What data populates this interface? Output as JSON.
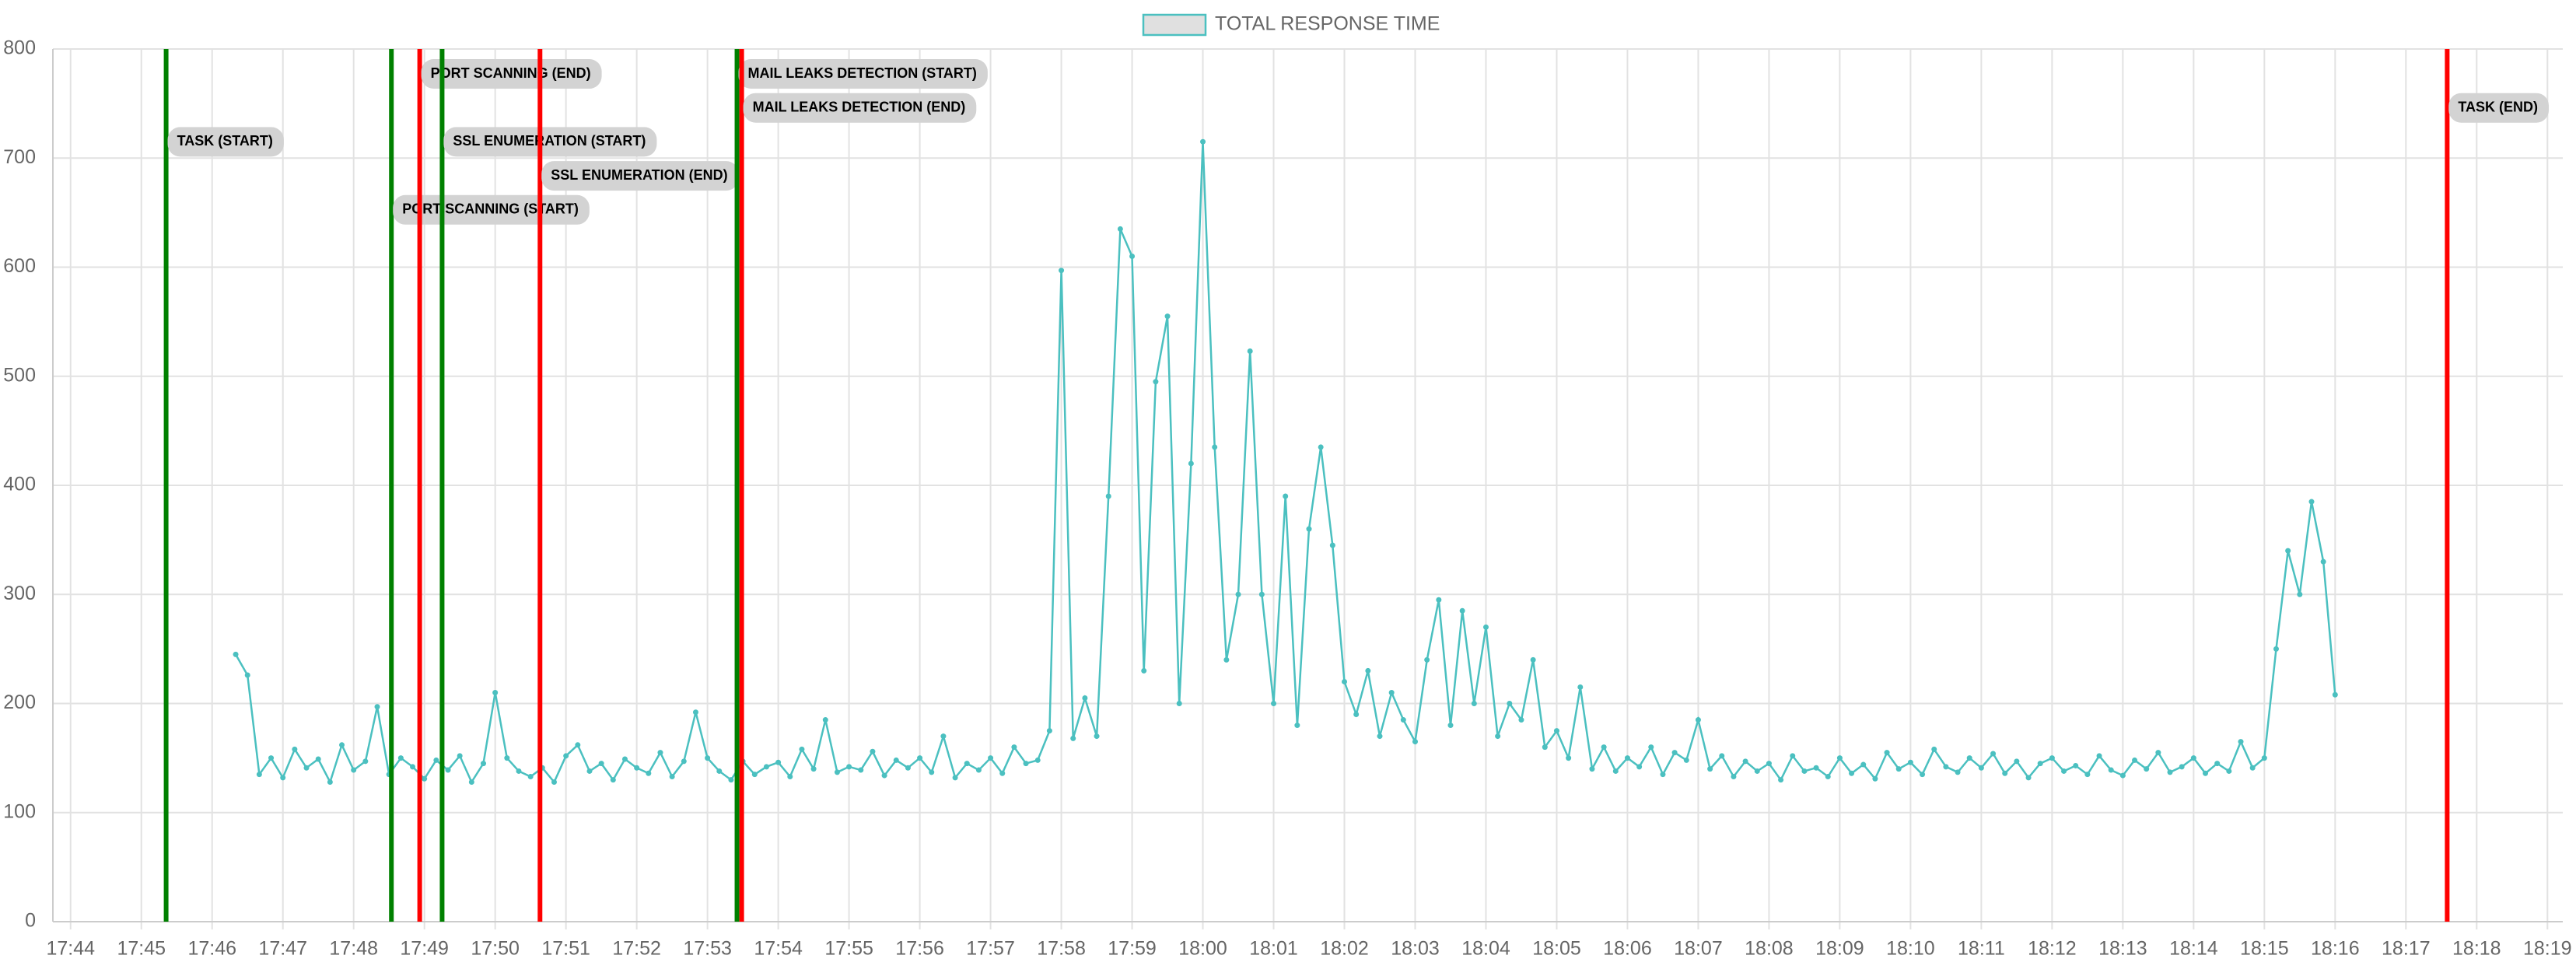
{
  "chart_data": {
    "type": "line",
    "series": [
      {
        "name": "TOTAL RESPONSE TIME",
        "color": "#4bc0c0",
        "legend_fill": "#e0e0e0",
        "x": [
          "17:46:20",
          "17:46:30",
          "17:46:40",
          "17:46:50",
          "17:47:00",
          "17:47:10",
          "17:47:20",
          "17:47:30",
          "17:47:40",
          "17:47:50",
          "17:48:00",
          "17:48:10",
          "17:48:20",
          "17:48:30",
          "17:48:40",
          "17:48:50",
          "17:49:00",
          "17:49:10",
          "17:49:20",
          "17:49:30",
          "17:49:40",
          "17:49:50",
          "17:50:00",
          "17:50:10",
          "17:50:20",
          "17:50:30",
          "17:50:40",
          "17:50:50",
          "17:51:00",
          "17:51:10",
          "17:51:20",
          "17:51:30",
          "17:51:40",
          "17:51:50",
          "17:52:00",
          "17:52:10",
          "17:52:20",
          "17:52:30",
          "17:52:40",
          "17:52:50",
          "17:53:00",
          "17:53:10",
          "17:53:20",
          "17:53:30",
          "17:53:40",
          "17:53:50",
          "17:54:00",
          "17:54:10",
          "17:54:20",
          "17:54:30",
          "17:54:40",
          "17:54:50",
          "17:55:00",
          "17:55:10",
          "17:55:20",
          "17:55:30",
          "17:55:40",
          "17:55:50",
          "17:56:00",
          "17:56:10",
          "17:56:20",
          "17:56:30",
          "17:56:40",
          "17:56:50",
          "17:57:00",
          "17:57:10",
          "17:57:20",
          "17:57:30",
          "17:57:40",
          "17:57:50",
          "17:58:00",
          "17:58:10",
          "17:58:20",
          "17:58:30",
          "17:58:40",
          "17:58:50",
          "17:59:00",
          "17:59:10",
          "17:59:20",
          "17:59:30",
          "17:59:40",
          "17:59:50",
          "18:00:00",
          "18:00:10",
          "18:00:20",
          "18:00:30",
          "18:00:40",
          "18:00:50",
          "18:01:00",
          "18:01:10",
          "18:01:20",
          "18:01:30",
          "18:01:40",
          "18:01:50",
          "18:02:00",
          "18:02:10",
          "18:02:20",
          "18:02:30",
          "18:02:40",
          "18:02:50",
          "18:03:00",
          "18:03:10",
          "18:03:20",
          "18:03:30",
          "18:03:40",
          "18:03:50",
          "18:04:00",
          "18:04:10",
          "18:04:20",
          "18:04:30",
          "18:04:40",
          "18:04:50",
          "18:05:00",
          "18:05:10",
          "18:05:20",
          "18:05:30",
          "18:05:40",
          "18:05:50",
          "18:06:00",
          "18:06:10",
          "18:06:20",
          "18:06:30",
          "18:06:40",
          "18:06:50",
          "18:07:00",
          "18:07:10",
          "18:07:20",
          "18:07:30",
          "18:07:40",
          "18:07:50",
          "18:08:00",
          "18:08:10",
          "18:08:20",
          "18:08:30",
          "18:08:40",
          "18:08:50",
          "18:09:00",
          "18:09:10",
          "18:09:20",
          "18:09:30",
          "18:09:40",
          "18:09:50",
          "18:10:00",
          "18:10:10",
          "18:10:20",
          "18:10:30",
          "18:10:40",
          "18:10:50",
          "18:11:00",
          "18:11:10",
          "18:11:20",
          "18:11:30",
          "18:11:40",
          "18:11:50",
          "18:12:00",
          "18:12:10",
          "18:12:20",
          "18:12:30",
          "18:12:40",
          "18:12:50",
          "18:13:00",
          "18:13:10",
          "18:13:20",
          "18:13:30",
          "18:13:40",
          "18:13:50",
          "18:14:00",
          "18:14:10",
          "18:14:20",
          "18:14:30",
          "18:14:40",
          "18:14:50",
          "18:15:00",
          "18:15:10",
          "18:15:20",
          "18:15:30",
          "18:15:40",
          "18:15:50",
          "18:16:00"
        ],
        "values": [
          245,
          226,
          135,
          150,
          132,
          158,
          141,
          149,
          128,
          162,
          139,
          147,
          197,
          135,
          150,
          142,
          131,
          148,
          139,
          152,
          128,
          145,
          210,
          150,
          138,
          133,
          141,
          128,
          152,
          162,
          138,
          145,
          130,
          149,
          141,
          136,
          155,
          133,
          147,
          192,
          150,
          138,
          130,
          147,
          135,
          142,
          146,
          133,
          158,
          140,
          185,
          137,
          142,
          139,
          156,
          134,
          148,
          141,
          150,
          137,
          170,
          132,
          145,
          139,
          150,
          136,
          160,
          145,
          148,
          175,
          597,
          168,
          205,
          170,
          390,
          635,
          610,
          230,
          495,
          555,
          200,
          420,
          715,
          435,
          240,
          300,
          523,
          300,
          200,
          390,
          180,
          360,
          435,
          345,
          220,
          190,
          230,
          170,
          210,
          185,
          165,
          240,
          295,
          180,
          285,
          200,
          270,
          170,
          200,
          185,
          240,
          160,
          175,
          150,
          215,
          140,
          160,
          138,
          150,
          142,
          160,
          135,
          155,
          148,
          185,
          140,
          152,
          133,
          147,
          138,
          145,
          130,
          152,
          138,
          141,
          133,
          150,
          136,
          144,
          131,
          155,
          140,
          146,
          135,
          158,
          142,
          137,
          150,
          141,
          154,
          136,
          147,
          132,
          145,
          150,
          138,
          143,
          135,
          152,
          139,
          134,
          148,
          140,
          155,
          137,
          142,
          150,
          136,
          145,
          138,
          165,
          141,
          150,
          250,
          340,
          300,
          385,
          330,
          208
        ]
      }
    ],
    "annotations": [
      {
        "x": "17:45:21",
        "label": "TASK (START)",
        "color": "#008000"
      },
      {
        "x": "17:48:32",
        "label": "PORT SCANNING (START)",
        "color": "#008000"
      },
      {
        "x": "17:48:56",
        "label": "PORT SCANNING (END)",
        "color": "#ff0000"
      },
      {
        "x": "17:49:15",
        "label": "SSL ENUMERATION (START)",
        "color": "#008000"
      },
      {
        "x": "17:50:38",
        "label": "SSL ENUMERATION (END)",
        "color": "#ff0000"
      },
      {
        "x": "17:53:25",
        "label": "MAIL LEAKS DETECTION (START)",
        "color": "#008000"
      },
      {
        "x": "17:53:29",
        "label": "MAIL LEAKS DETECTION (END)",
        "color": "#ff0000"
      },
      {
        "x": "18:17:35",
        "label": "TASK (END)",
        "color": "#ff0000"
      }
    ],
    "xlim": [
      "17:43:45",
      "18:19:13"
    ],
    "xticks": [
      "17:44",
      "17:45",
      "17:46",
      "17:47",
      "17:48",
      "17:49",
      "17:50",
      "17:51",
      "17:52",
      "17:53",
      "17:54",
      "17:55",
      "17:56",
      "17:57",
      "17:58",
      "17:59",
      "18:00",
      "18:01",
      "18:02",
      "18:03",
      "18:04",
      "18:05",
      "18:06",
      "18:07",
      "18:08",
      "18:09",
      "18:10",
      "18:11",
      "18:12",
      "18:13",
      "18:14",
      "18:15",
      "18:16",
      "18:17",
      "18:18",
      "18:19"
    ],
    "ylim": [
      0,
      800
    ],
    "yticks": [
      0,
      100,
      200,
      300,
      400,
      500,
      600,
      700,
      800
    ],
    "grid": true
  }
}
